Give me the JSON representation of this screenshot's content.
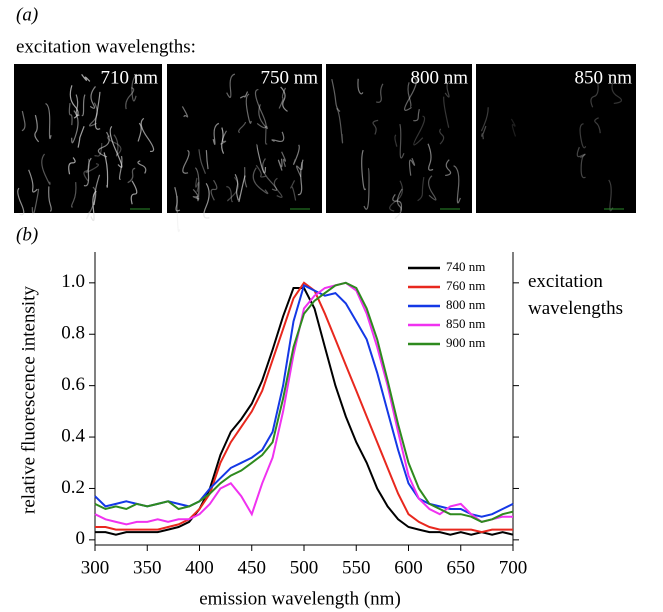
{
  "panel_a": {
    "label": "(a)",
    "caption": "excitation wavelengths:",
    "images": [
      "710 nm",
      "750 nm",
      "800 nm",
      "850 nm"
    ]
  },
  "panel_b": {
    "label": "(b)"
  },
  "chart_data": {
    "type": "line",
    "x_label": "emission wavelength (nm)",
    "y_label": "relative fluorescence intensity",
    "legend_title": "excitation wavelengths",
    "legend": "upper right",
    "x": [
      300,
      310,
      320,
      330,
      340,
      350,
      360,
      370,
      380,
      390,
      400,
      410,
      420,
      430,
      440,
      450,
      460,
      470,
      480,
      490,
      500,
      510,
      520,
      530,
      540,
      550,
      560,
      570,
      580,
      590,
      600,
      610,
      620,
      630,
      640,
      650,
      660,
      670,
      680,
      690,
      700
    ],
    "xlim": [
      300,
      700
    ],
    "ylim": [
      -0.02,
      1.12
    ],
    "xticks": [
      300,
      350,
      400,
      450,
      500,
      550,
      600,
      650,
      700
    ],
    "yticks": [
      0,
      0.2,
      0.4,
      0.6,
      0.8,
      {
        "value": 1,
        "label": "1.0"
      }
    ],
    "series": [
      {
        "name": "740 nm",
        "color": "#000000",
        "values": [
          0.03,
          0.03,
          0.02,
          0.03,
          0.03,
          0.03,
          0.03,
          0.04,
          0.05,
          0.07,
          0.12,
          0.2,
          0.33,
          0.42,
          0.47,
          0.53,
          0.62,
          0.74,
          0.87,
          0.98,
          0.98,
          0.9,
          0.75,
          0.6,
          0.48,
          0.38,
          0.3,
          0.2,
          0.13,
          0.08,
          0.05,
          0.04,
          0.03,
          0.03,
          0.02,
          0.03,
          0.02,
          0.03,
          0.02,
          0.03,
          0.02
        ]
      },
      {
        "name": "760 nm",
        "color": "#e8281e",
        "values": [
          0.05,
          0.05,
          0.04,
          0.04,
          0.04,
          0.04,
          0.04,
          0.05,
          0.06,
          0.08,
          0.12,
          0.18,
          0.3,
          0.38,
          0.44,
          0.5,
          0.58,
          0.7,
          0.82,
          0.94,
          1.0,
          0.97,
          0.88,
          0.78,
          0.68,
          0.58,
          0.48,
          0.38,
          0.28,
          0.18,
          0.1,
          0.07,
          0.05,
          0.04,
          0.04,
          0.04,
          0.04,
          0.03,
          0.04,
          0.04,
          0.04
        ]
      },
      {
        "name": "800 nm",
        "color": "#1438e6",
        "values": [
          0.17,
          0.13,
          0.14,
          0.15,
          0.14,
          0.13,
          0.14,
          0.15,
          0.14,
          0.13,
          0.15,
          0.2,
          0.24,
          0.28,
          0.3,
          0.32,
          0.35,
          0.42,
          0.6,
          0.85,
          0.99,
          0.97,
          0.95,
          0.96,
          0.92,
          0.85,
          0.78,
          0.65,
          0.5,
          0.35,
          0.22,
          0.16,
          0.14,
          0.13,
          0.12,
          0.12,
          0.1,
          0.09,
          0.1,
          0.12,
          0.14
        ]
      },
      {
        "name": "850 nm",
        "color": "#f032f0",
        "values": [
          0.1,
          0.08,
          0.07,
          0.06,
          0.07,
          0.07,
          0.08,
          0.07,
          0.08,
          0.08,
          0.1,
          0.14,
          0.2,
          0.22,
          0.17,
          0.1,
          0.22,
          0.32,
          0.5,
          0.72,
          0.9,
          0.95,
          0.98,
          0.99,
          1.0,
          0.97,
          0.88,
          0.75,
          0.6,
          0.42,
          0.25,
          0.16,
          0.12,
          0.1,
          0.13,
          0.14,
          0.1,
          0.07,
          0.08,
          0.09,
          0.09
        ]
      },
      {
        "name": "900 nm",
        "color": "#2e8a1e",
        "values": [
          0.14,
          0.12,
          0.13,
          0.12,
          0.14,
          0.13,
          0.14,
          0.15,
          0.12,
          0.13,
          0.15,
          0.18,
          0.22,
          0.25,
          0.27,
          0.3,
          0.33,
          0.38,
          0.55,
          0.75,
          0.88,
          0.93,
          0.96,
          0.99,
          1.0,
          0.98,
          0.9,
          0.78,
          0.62,
          0.45,
          0.3,
          0.2,
          0.14,
          0.12,
          0.1,
          0.1,
          0.09,
          0.07,
          0.08,
          0.1,
          0.11
        ]
      }
    ]
  }
}
